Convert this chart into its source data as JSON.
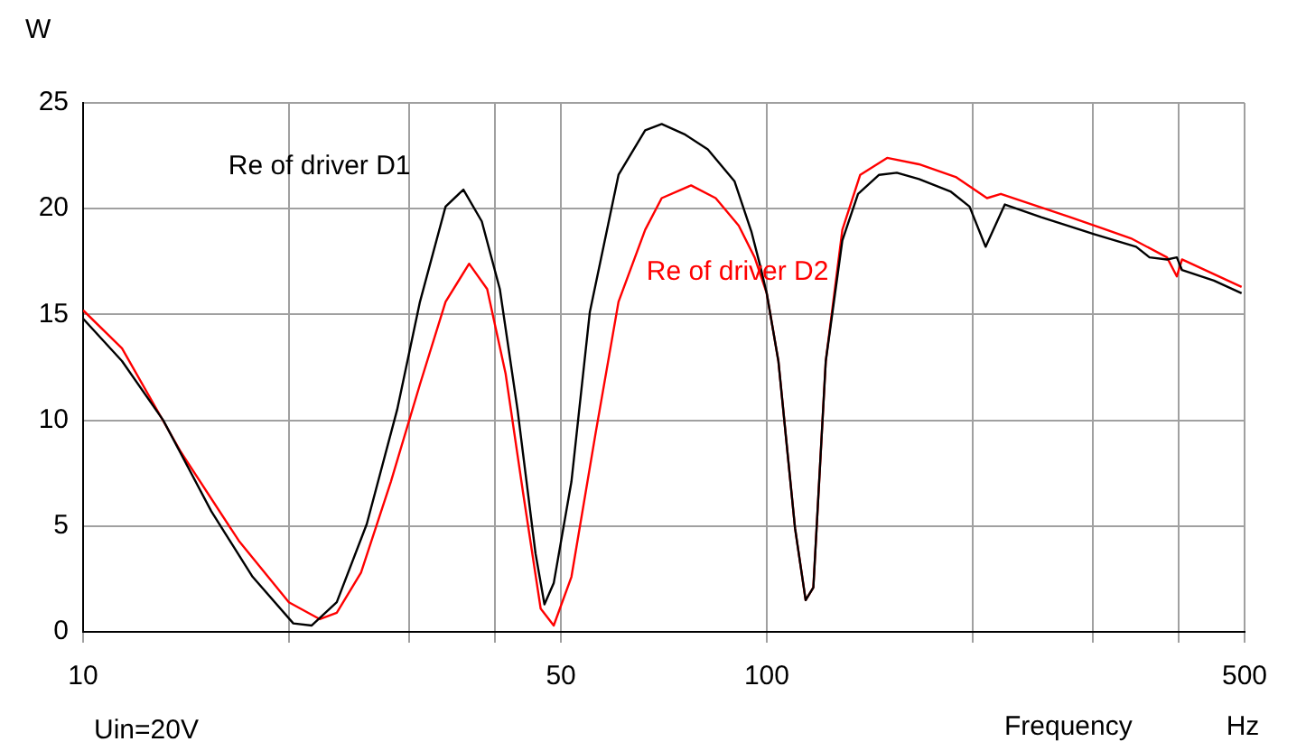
{
  "chart_data": {
    "type": "line",
    "ylabel": "W",
    "xlabel": "Frequency",
    "annotations": [
      "Hz",
      "Uin=20V"
    ],
    "log": "x",
    "grid": true,
    "legend": false,
    "marker": "none",
    "line_style": "solid",
    "xlim": [
      10,
      500
    ],
    "xticks": [
      10,
      {
        "value": 20,
        "label": null
      },
      {
        "value": 30,
        "label": null
      },
      {
        "value": 40,
        "label": null
      },
      50,
      100,
      {
        "value": 200,
        "label": null
      },
      {
        "value": 300,
        "label": null
      },
      {
        "value": 400,
        "label": null
      },
      500
    ],
    "ylim": [
      0,
      25
    ],
    "yticks": [
      0,
      5,
      10,
      15,
      20,
      25
    ],
    "series": [
      {
        "name": "Re of driver D1",
        "color": "#000000",
        "x": [
          10,
          11.4,
          13.1,
          15.4,
          17.7,
          20.3,
          21.6,
          23.5,
          26,
          28.8,
          31.1,
          33.9,
          36,
          38.3,
          40.7,
          43.2,
          45.9,
          47.3,
          48.8,
          51.8,
          55.1,
          60.7,
          66.4,
          70.2,
          76,
          82,
          89.7,
          95,
          98,
          100,
          104,
          110,
          114,
          117,
          122,
          129,
          136,
          146,
          155,
          167,
          186,
          198,
          209,
          223,
          252,
          301,
          347,
          363,
          385,
          398,
          405,
          451,
          495
        ],
        "values": [
          14.8,
          12.8,
          10.0,
          5.7,
          2.6,
          0.4,
          0.3,
          1.4,
          5.1,
          10.5,
          15.6,
          20.1,
          20.9,
          19.4,
          16.2,
          10.5,
          3.7,
          1.3,
          2.3,
          7.1,
          15.1,
          21.6,
          23.7,
          24.0,
          23.5,
          22.8,
          21.3,
          18.9,
          17.2,
          16.0,
          12.8,
          4.9,
          1.5,
          2.1,
          12.8,
          18.5,
          20.7,
          21.6,
          21.7,
          21.4,
          20.8,
          20.1,
          18.2,
          20.2,
          19.6,
          18.8,
          18.2,
          17.7,
          17.6,
          17.7,
          17.1,
          16.6,
          16.0
        ]
      },
      {
        "name": "Re of driver D2",
        "color": "#ff0000",
        "x": [
          10,
          11.4,
          13.9,
          16.9,
          20,
          22.2,
          23.5,
          25.5,
          28.2,
          31.1,
          33.9,
          36.7,
          39,
          41.5,
          44,
          46.7,
          48.8,
          51.8,
          56.2,
          60.7,
          66.4,
          70.2,
          77.5,
          84.2,
          91,
          96,
          100,
          104,
          110,
          114,
          117,
          122,
          129,
          137,
          150,
          167,
          189,
          210,
          220,
          278,
          341,
          385,
          398,
          405,
          495
        ],
        "values": [
          15.2,
          13.4,
          8.5,
          4.3,
          1.4,
          0.6,
          0.9,
          2.8,
          7.1,
          11.7,
          15.6,
          17.4,
          16.2,
          12.2,
          6.6,
          1.1,
          0.3,
          2.6,
          9.4,
          15.6,
          19.0,
          20.5,
          21.1,
          20.5,
          19.2,
          17.7,
          16.0,
          12.8,
          4.9,
          1.5,
          2.1,
          12.8,
          19.0,
          21.6,
          22.4,
          22.1,
          21.5,
          20.5,
          20.7,
          19.6,
          18.6,
          17.7,
          16.8,
          17.6,
          16.3
        ]
      }
    ]
  }
}
